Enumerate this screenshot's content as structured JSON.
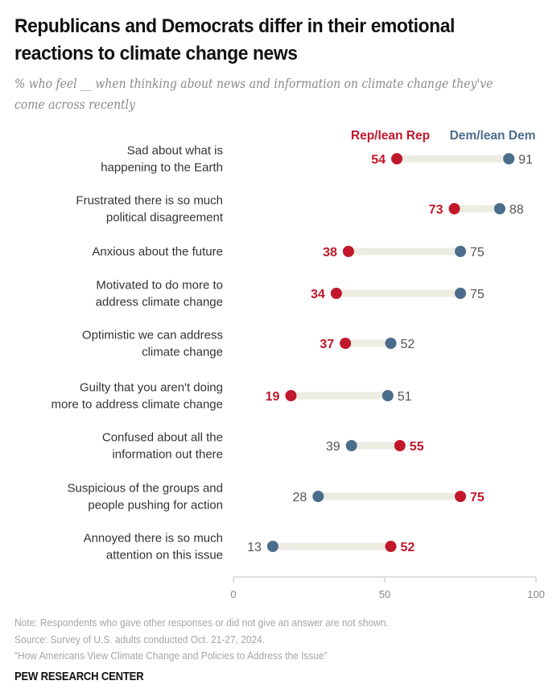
{
  "chart_data": {
    "type": "dumbbell",
    "title": "Republicans and Democrats differ in their emotional reactions to climate change news",
    "subtitle": "% who feel __ when thinking about news and information on climate change they've come across recently",
    "xlabel": "",
    "ylabel": "",
    "xlim": [
      0,
      100
    ],
    "xticks": [
      0,
      50,
      100
    ],
    "grid": false,
    "legend_position": "top-right",
    "colors": {
      "rep": "#c1182b",
      "dem": "#4a6d8c",
      "connector": "#edece2",
      "axis": "#d5d5d5"
    },
    "series": [
      {
        "name": "Rep/lean Rep",
        "key": "rep",
        "values": [
          54,
          73,
          38,
          34,
          37,
          19,
          55,
          75,
          52
        ]
      },
      {
        "name": "Dem/lean Dem",
        "key": "dem",
        "values": [
          91,
          88,
          75,
          75,
          52,
          51,
          39,
          28,
          13
        ]
      }
    ],
    "categories": [
      [
        "Sad about what is",
        "happening to the Earth"
      ],
      [
        "Frustrated there is so much",
        "political disagreement"
      ],
      [
        "Anxious about the future"
      ],
      [
        "Motivated to do more to",
        "address climate change"
      ],
      [
        "Optimistic we can address",
        "climate change"
      ],
      [
        "Guilty that you aren't doing",
        "more to address climate change"
      ],
      [
        "Confused about all the",
        "information out there"
      ],
      [
        "Suspicious of the groups and",
        "people pushing for action"
      ],
      [
        "Annoyed there is so much",
        "attention on this issue"
      ]
    ]
  },
  "header": {
    "title": "Republicans and Democrats differ in their emotional reactions to climate change news",
    "subtitle": "% who feel __ when thinking about news and information on climate change they've come across recently"
  },
  "legend": {
    "rep": "Rep/lean Rep",
    "dem": "Dem/lean Dem"
  },
  "footer": {
    "note": "Note: Respondents who gave other responses or did not give an answer are not shown.",
    "source": "Source: Survey of U.S. adults conducted Oct. 21-27, 2024.",
    "report": "“How Americans View Climate Change and Policies to Address the Issue”",
    "brand": "PEW RESEARCH CENTER"
  }
}
